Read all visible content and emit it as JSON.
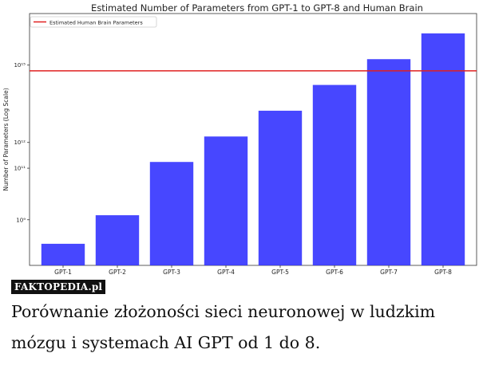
{
  "chart_data": {
    "type": "bar",
    "title": "Estimated Number of Parameters from GPT-1 to GPT-8 and Human Brain",
    "xlabel": "",
    "ylabel": "Number of Parameters (Log Scale)",
    "y_scale": "log",
    "ylim": [
      17000000,
      1e+17
    ],
    "y_ticks": [
      {
        "value": 1000000000,
        "label": "10⁹"
      },
      {
        "value": 100000000000,
        "label": "10¹¹"
      },
      {
        "value": 1000000000000,
        "label": "10¹²"
      },
      {
        "value": 1000000000000000,
        "label": "10¹⁵"
      }
    ],
    "categories": [
      "GPT-1",
      "GPT-2",
      "GPT-3",
      "GPT-4",
      "GPT-5",
      "GPT-6",
      "GPT-7",
      "GPT-8"
    ],
    "values": [
      117000000,
      1500000000,
      175000000000,
      1700000000000,
      17000000000000,
      170000000000000,
      1700000000000000,
      17000000000000000
    ],
    "bar_color": "#3333ff",
    "reference_line": {
      "name": "Estimated Human Brain Parameters",
      "value": 600000000000000,
      "color": "#e02020"
    },
    "legend_position": "top-left",
    "grid": false
  },
  "watermark": "FAKTOPEDIA.pl",
  "caption": "Porównanie złożoności sieci neuronowej w ludzkim mózgu i systemach AI GPT od 1 do 8."
}
